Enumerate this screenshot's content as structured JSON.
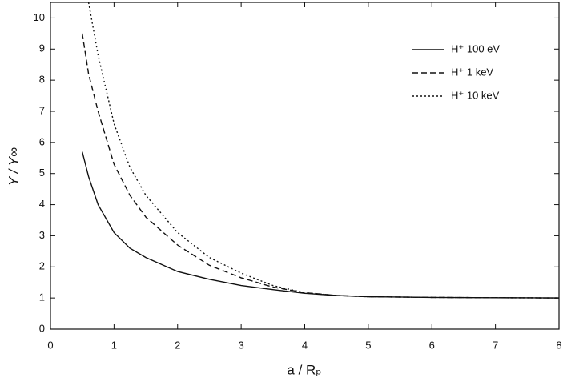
{
  "chart_data": {
    "type": "line",
    "xlabel": "a / Rₚ",
    "ylabel": "Y / Y∞",
    "xlim": [
      0,
      8
    ],
    "ylim": [
      0,
      10.5
    ],
    "xticks": [
      0,
      1,
      2,
      3,
      4,
      5,
      6,
      7,
      8
    ],
    "yticks": [
      0,
      1,
      2,
      3,
      4,
      5,
      6,
      7,
      8,
      9,
      10
    ],
    "legend": "upper right",
    "series": [
      {
        "name": "H⁺ 100 eV",
        "color": "#111111",
        "dash": "solid",
        "x": [
          0.5,
          0.6,
          0.75,
          1,
          1.25,
          1.5,
          2,
          2.5,
          3,
          3.5,
          4,
          4.5,
          5,
          6,
          7,
          8
        ],
        "values": [
          5.7,
          4.9,
          4.0,
          3.1,
          2.6,
          2.3,
          1.85,
          1.6,
          1.4,
          1.27,
          1.15,
          1.08,
          1.04,
          1.02,
          1.01,
          1.0
        ]
      },
      {
        "name": "H⁺ 1  keV",
        "color": "#111111",
        "dash": "dashed",
        "x": [
          0.5,
          0.6,
          0.75,
          1,
          1.25,
          1.5,
          2,
          2.5,
          3,
          3.5,
          4,
          4.5,
          5,
          6,
          7,
          8
        ],
        "values": [
          9.5,
          8.2,
          7.0,
          5.3,
          4.3,
          3.6,
          2.7,
          2.05,
          1.65,
          1.35,
          1.17,
          1.08,
          1.04,
          1.02,
          1.01,
          1.0
        ]
      },
      {
        "name": "H⁺ 10 keV",
        "color": "#111111",
        "dash": "dotted",
        "x": [
          0.6,
          0.75,
          1,
          1.25,
          1.5,
          2,
          2.5,
          3,
          3.5,
          4,
          4.5,
          5,
          6,
          7,
          8
        ],
        "values": [
          10.5,
          8.8,
          6.6,
          5.2,
          4.3,
          3.1,
          2.3,
          1.8,
          1.4,
          1.17,
          1.08,
          1.04,
          1.02,
          1.01,
          1.0
        ]
      }
    ]
  }
}
